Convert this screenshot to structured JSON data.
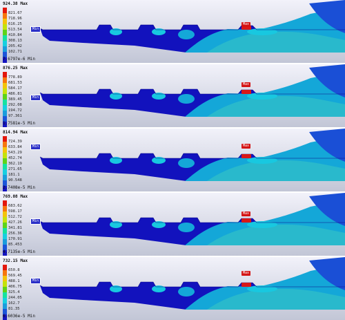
{
  "legend_colors": [
    "#e3170d",
    "#f6760e",
    "#f3c30b",
    "#c4e20b",
    "#5ed318",
    "#15e2a0",
    "#16cfe0",
    "#1a9ddc",
    "#1c55d9",
    "#1414c0"
  ],
  "field_colors": {
    "deep": "#1212bd",
    "mid": "#1a4fd6",
    "light": "#14a7d8",
    "cyan": "#18c8e0",
    "aqua": "#29b9cc",
    "hot": "#d81818",
    "edge": "#0a0a8a"
  },
  "panels": [
    {
      "max_value": "924.38",
      "max_word": "Max",
      "ticks": [
        "821.67",
        "718.96",
        "616.25",
        "513.54",
        "410.84",
        "308.13",
        "205.42",
        "102.71"
      ],
      "min_value": "7.6797e-6",
      "min_word": "Min",
      "min_tag": "Min",
      "max_tag": "Max"
    },
    {
      "max_value": "876.25",
      "max_word": "Max",
      "ticks": [
        "778.89",
        "681.53",
        "584.17",
        "486.81",
        "389.45",
        "292.08",
        "194.72",
        "97.361"
      ],
      "min_value": "1.7581e-5",
      "min_word": "Min",
      "min_tag": "Min",
      "max_tag": "Max"
    },
    {
      "max_value": "814.94",
      "max_word": "Max",
      "ticks": [
        "724.39",
        "633.84",
        "543.29",
        "452.74",
        "362.19",
        "271.65",
        "181.1",
        "90.548"
      ],
      "min_value": "2.7408e-5",
      "min_word": "Min",
      "min_tag": "Min",
      "max_tag": "Max"
    },
    {
      "max_value": "769.08",
      "max_word": "Max",
      "ticks": [
        "683.62",
        "598.17",
        "512.72",
        "427.26",
        "341.81",
        "256.36",
        "170.91",
        "85.453"
      ],
      "min_value": "4.7135e-5",
      "min_word": "Min",
      "min_tag": "Min",
      "max_tag": "Max"
    },
    {
      "max_value": "732.15",
      "max_word": "Max",
      "ticks": [
        "650.8",
        "569.45",
        "488.1",
        "406.75",
        "325.4",
        "244.05",
        "162.7",
        "81.35"
      ],
      "min_value": "6.6036e-5",
      "min_word": "Min",
      "min_tag": "Min",
      "max_tag": "Max"
    }
  ]
}
